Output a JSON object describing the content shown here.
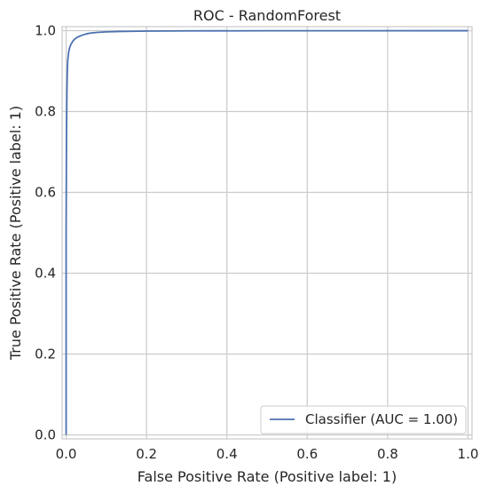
{
  "chart_data": {
    "type": "line",
    "title": "ROC - RandomForest",
    "xlabel": "False Positive Rate (Positive label: 1)",
    "ylabel": "True Positive Rate (Positive label: 1)",
    "xlim": [
      -0.01,
      1.01
    ],
    "ylim": [
      -0.01,
      1.01
    ],
    "xticks": [
      0.0,
      0.2,
      0.4,
      0.6,
      0.8,
      1.0
    ],
    "yticks": [
      0.0,
      0.2,
      0.4,
      0.6,
      0.8,
      1.0
    ],
    "xtick_labels": [
      "0.0",
      "0.2",
      "0.4",
      "0.6",
      "0.8",
      "1.0"
    ],
    "ytick_labels": [
      "0.0",
      "0.2",
      "0.4",
      "0.6",
      "0.8",
      "1.0"
    ],
    "grid": true,
    "legend_position": "lower-right",
    "series": [
      {
        "name": "Classifier (AUC = 1.00)",
        "color": "#4c72b0",
        "x": [
          0.0,
          0.0,
          0.001,
          0.002,
          0.003,
          0.004,
          0.006,
          0.008,
          0.01,
          0.013,
          0.016,
          0.02,
          0.025,
          0.03,
          0.04,
          0.05,
          0.06,
          0.08,
          0.1,
          0.13,
          0.16,
          0.2,
          0.3,
          0.5,
          0.7,
          1.0
        ],
        "y": [
          0.0,
          0.5,
          0.75,
          0.85,
          0.9,
          0.925,
          0.945,
          0.955,
          0.962,
          0.968,
          0.973,
          0.978,
          0.982,
          0.985,
          0.989,
          0.992,
          0.994,
          0.996,
          0.997,
          0.998,
          0.9985,
          0.999,
          0.9995,
          0.9998,
          0.9999,
          1.0
        ]
      }
    ]
  }
}
